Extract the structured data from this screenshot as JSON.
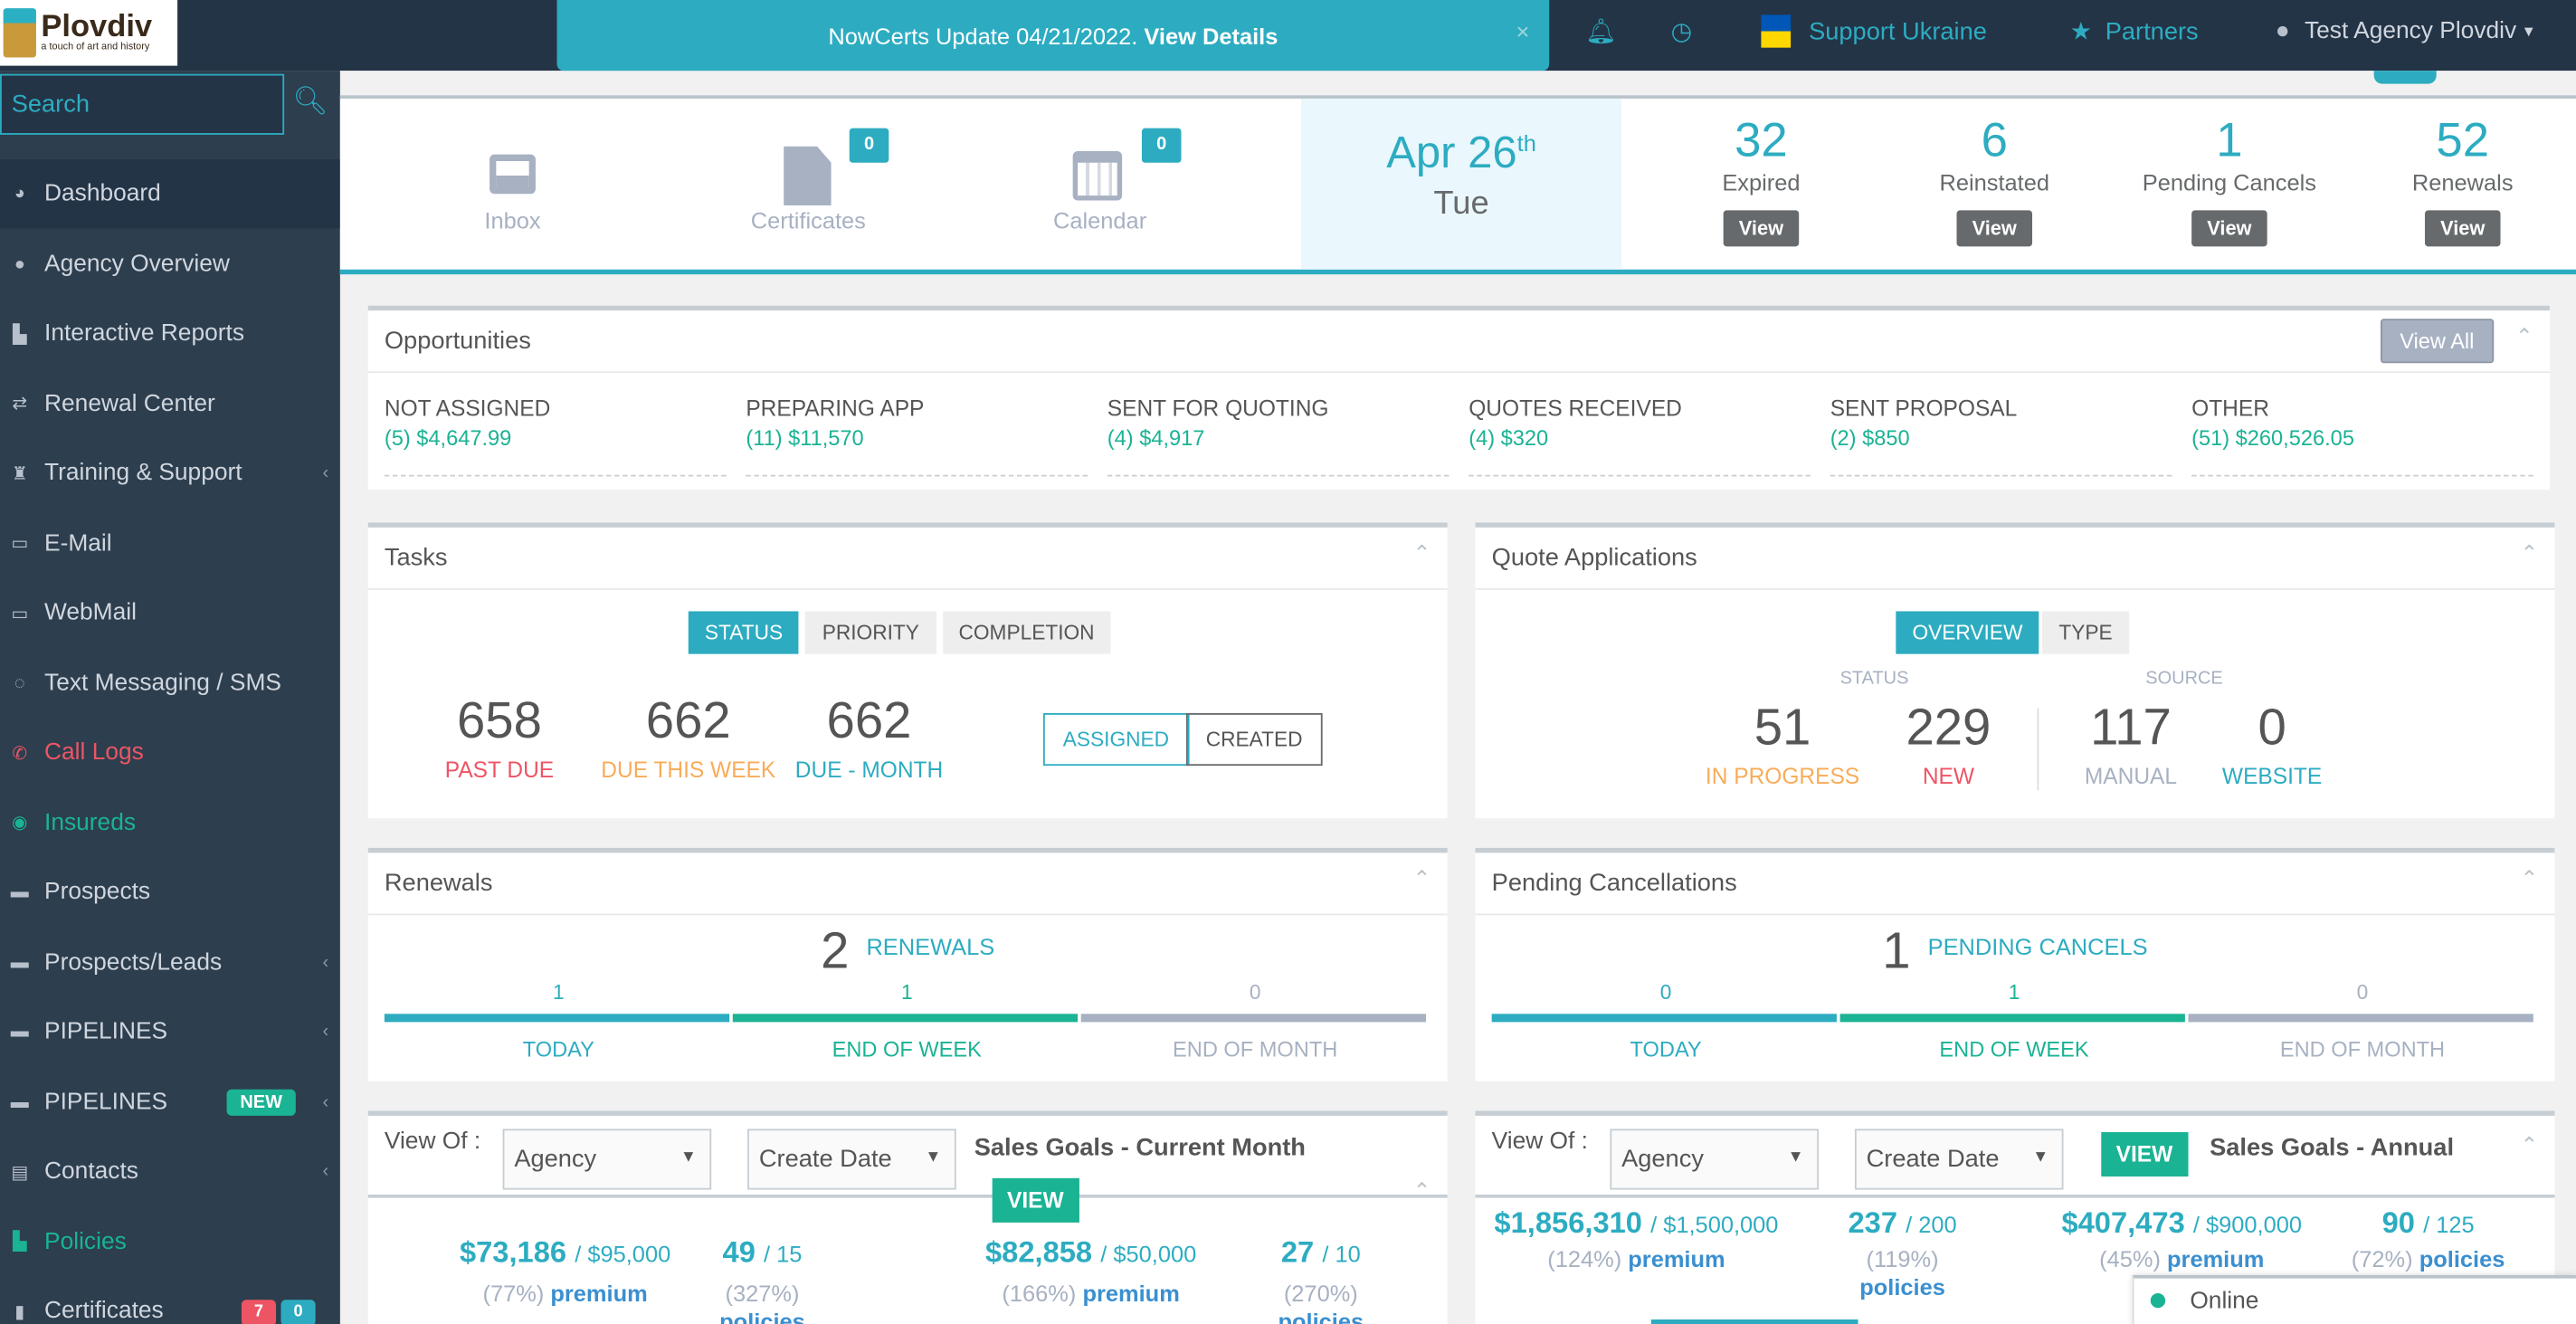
{
  "logo": {
    "name": "Plovdiv",
    "tagline": "a touch of art and history"
  },
  "banner": {
    "text": "NowCerts Update 04/21/2022.",
    "link": "View Details",
    "close": "×"
  },
  "topnav": {
    "support": "Support Ukraine",
    "partners": "Partners",
    "user": "Test Agency Plovdiv"
  },
  "sidebar": {
    "search_placeholder": "Search",
    "items": [
      {
        "label": "Dashboard",
        "icon": "dashboard-icon"
      },
      {
        "label": "Agency Overview",
        "icon": "globe-icon"
      },
      {
        "label": "Interactive Reports",
        "icon": "report-icon"
      },
      {
        "label": "Renewal Center",
        "icon": "exchange-icon"
      },
      {
        "label": "Training & Support",
        "icon": "trophy-icon"
      },
      {
        "label": "E-Mail",
        "icon": "inbox-icon"
      },
      {
        "label": "WebMail",
        "icon": "inbox-icon"
      },
      {
        "label": "Text Messaging / SMS",
        "icon": "chat-icon"
      },
      {
        "label": "Call Logs",
        "icon": "phone-icon"
      },
      {
        "label": "Insureds",
        "icon": "eye-icon"
      },
      {
        "label": "Prospects",
        "icon": "folder-icon"
      },
      {
        "label": "Prospects/Leads",
        "icon": "folder-icon"
      },
      {
        "label": "PIPELINES",
        "icon": "folder-icon"
      },
      {
        "label": "PIPELINES",
        "icon": "folder-icon",
        "badge": "NEW"
      },
      {
        "label": "Contacts",
        "icon": "book-icon"
      },
      {
        "label": "Policies",
        "icon": "files-icon"
      },
      {
        "label": "Certificates",
        "icon": "file-icon",
        "badges": [
          "7",
          "0"
        ]
      }
    ]
  },
  "stats": {
    "inbox": "Inbox",
    "certificates": "Certificates",
    "certificates_count": "0",
    "calendar": "Calendar",
    "calendar_count": "0",
    "date": "Apr 26",
    "date_suffix": "th",
    "weekday": "Tue",
    "items": [
      {
        "value": "32",
        "label": "Expired"
      },
      {
        "value": "6",
        "label": "Reinstated"
      },
      {
        "value": "1",
        "label": "Pending Cancels"
      },
      {
        "value": "52",
        "label": "Renewals"
      }
    ],
    "view": "View"
  },
  "opportunities": {
    "title": "Opportunities",
    "view_all": "View All",
    "cols": [
      {
        "label": "NOT ASSIGNED",
        "value": "(5) $4,647.99"
      },
      {
        "label": "PREPARING APP",
        "value": "(11) $11,570"
      },
      {
        "label": "SENT FOR QUOTING",
        "value": "(4) $4,917"
      },
      {
        "label": "QUOTES RECEIVED",
        "value": "(4) $320"
      },
      {
        "label": "SENT PROPOSAL",
        "value": "(2) $850"
      },
      {
        "label": "OTHER",
        "value": "(51) $260,526.05"
      }
    ]
  },
  "tasks": {
    "title": "Tasks",
    "tabs": [
      "STATUS",
      "PRIORITY",
      "COMPLETION"
    ],
    "stats": [
      {
        "value": "658",
        "label": "PAST DUE",
        "color": "#ed5565"
      },
      {
        "value": "662",
        "label": "DUE THIS WEEK",
        "color": "#f8ac59"
      },
      {
        "value": "662",
        "label": "DUE - MONTH",
        "color": "#2dacc1"
      }
    ],
    "assigned": "ASSIGNED",
    "created": "CREATED"
  },
  "quotes": {
    "title": "Quote Applications",
    "tabs": [
      "OVERVIEW",
      "TYPE"
    ],
    "status": "STATUS",
    "source": "SOURCE",
    "stats": [
      {
        "value": "51",
        "label": "IN PROGRESS",
        "color": "#f8ac59"
      },
      {
        "value": "229",
        "label": "NEW",
        "color": "#ed5565"
      },
      {
        "value": "117",
        "label": "MANUAL",
        "color": "#a7b1c2"
      },
      {
        "value": "0",
        "label": "WEBSITE",
        "color": "#2dacc1"
      }
    ]
  },
  "renewals": {
    "title": "Renewals",
    "total": "2",
    "total_label": "RENEWALS",
    "buckets": [
      {
        "value": "1",
        "label": "TODAY"
      },
      {
        "value": "1",
        "label": "END OF WEEK"
      },
      {
        "value": "0",
        "label": "END OF MONTH"
      }
    ]
  },
  "pending": {
    "title": "Pending Cancellations",
    "total": "1",
    "total_label": "PENDING CANCELS",
    "buckets": [
      {
        "value": "0",
        "label": "TODAY"
      },
      {
        "value": "1",
        "label": "END OF WEEK"
      },
      {
        "value": "0",
        "label": "END OF MONTH"
      }
    ]
  },
  "sales_month": {
    "view_of": "View Of :",
    "select1": "Agency",
    "select2": "Create Date",
    "title": "Sales Goals - Current Month",
    "view": "VIEW",
    "goals": [
      {
        "value": "$73,186",
        "target": "/ $95,000",
        "pct": "(77%)",
        "unit": "premium"
      },
      {
        "value": "49",
        "target": "/ 15",
        "pct": "(327%)",
        "unit": "policies"
      },
      {
        "value": "$82,858",
        "target": "/ $50,000",
        "pct": "(166%)",
        "unit": "premium"
      },
      {
        "value": "27",
        "target": "/ 10",
        "pct": "(270%)",
        "unit": "policies"
      }
    ]
  },
  "sales_annual": {
    "view_of": "View Of :",
    "select1": "Agency",
    "select2": "Create Date",
    "title": "Sales Goals - Annual",
    "view": "VIEW",
    "goals": [
      {
        "value": "$1,856,310",
        "target": "/ $1,500,000",
        "pct": "(124%)",
        "unit": "premium"
      },
      {
        "value": "237",
        "target": "/ 200",
        "pct": "(119%)",
        "unit": "policies"
      },
      {
        "value": "$407,473",
        "target": "/ $900,000",
        "pct": "(45%)",
        "unit": "premium"
      },
      {
        "value": "90",
        "target": "/ 125",
        "pct": "(72%)",
        "unit": "policies"
      }
    ]
  },
  "chat": {
    "status": "Online"
  }
}
